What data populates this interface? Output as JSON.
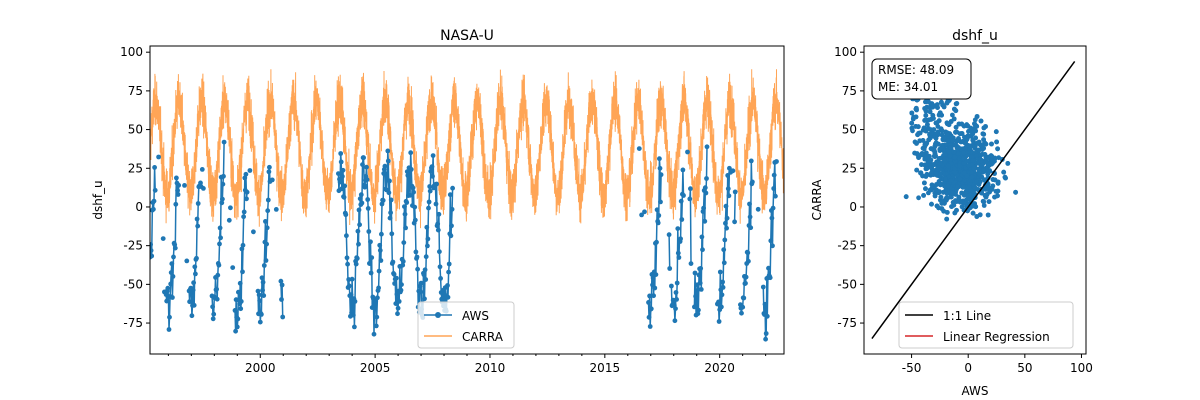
{
  "colors": {
    "aws": "#1f77b4",
    "carra": "#ff7f0e",
    "identity": "#000000",
    "regression": "#d62728"
  },
  "chart_data": [
    {
      "type": "line",
      "title": "NASA-U",
      "xlabel": "",
      "ylabel": "dshf_u",
      "xlim": [
        1995.2,
        2022.8
      ],
      "ylim": [
        -95,
        104
      ],
      "xticks": [
        2000,
        2005,
        2010,
        2015,
        2020
      ],
      "yticks": [
        -75,
        -50,
        -25,
        0,
        25,
        50,
        75,
        100
      ],
      "grid": false,
      "legend": "lower center",
      "series": [
        {
          "name": "AWS",
          "color": "#1f77b4",
          "marker": "circle",
          "note": "daily values, present roughly 1995-2001, 2003-2008, 2016-2022"
        },
        {
          "name": "CARRA",
          "color": "#ff7f0e",
          "alpha": 0.7,
          "seasonal_range": [
            -12,
            88
          ]
        }
      ]
    },
    {
      "type": "scatter",
      "title": "dshf_u",
      "xlabel": "AWS",
      "ylabel": "CARRA",
      "xlim": [
        -92,
        104
      ],
      "ylim": [
        -95,
        104
      ],
      "xticks": [
        -50,
        0,
        50,
        100
      ],
      "yticks": [
        -75,
        -50,
        -25,
        0,
        25,
        50,
        75,
        100
      ],
      "grid": false,
      "legend": "lower right",
      "stats": {
        "rmse": "RMSE: 48.09",
        "me": "ME: 34.01"
      },
      "series": [
        {
          "name": "1:1 Line",
          "color": "#000000",
          "x": [
            -85,
            94
          ],
          "y": [
            -85,
            94
          ]
        },
        {
          "name": "Linear Regression",
          "color": "#d62728"
        },
        {
          "name": "points",
          "color": "#1f77b4",
          "cluster_center": [
            -5,
            25
          ]
        }
      ]
    }
  ]
}
